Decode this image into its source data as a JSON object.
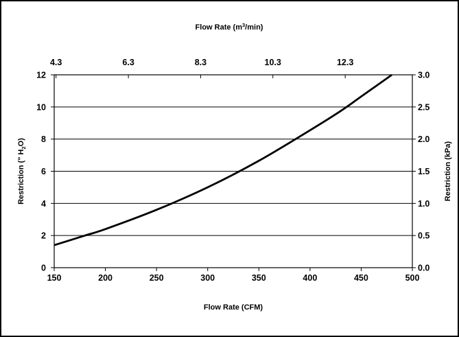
{
  "chart_data": {
    "type": "line",
    "title": "",
    "x_axis": {
      "label": "Flow Rate (CFM)",
      "range": [
        150,
        500
      ],
      "ticks": [
        150,
        200,
        250,
        300,
        350,
        400,
        450,
        500
      ]
    },
    "x2_axis": {
      "label_parts": {
        "main": "Flow Rate (m",
        "sup": "3",
        "tail": "/min)"
      },
      "label": "Flow Rate (m3/min)",
      "tick_labels": [
        "4.3",
        "6.3",
        "8.3",
        "10.3",
        "12.3"
      ],
      "tick_values_cfm": [
        151.8,
        222.5,
        293.1,
        363.7,
        434.4
      ]
    },
    "y_axis": {
      "label_parts": {
        "main": "Restriction (\" H",
        "sub": "2",
        "tail": "O)"
      },
      "label": "Restriction (\" H2O)",
      "range": [
        0,
        12
      ],
      "ticks": [
        0,
        2,
        4,
        6,
        8,
        10,
        12
      ]
    },
    "y2_axis": {
      "label": "Restriction (kPa)",
      "range": [
        0.0,
        3.0
      ],
      "tick_labels": [
        "0.0",
        "0.5",
        "1.0",
        "1.5",
        "2.0",
        "2.5",
        "3.0"
      ]
    },
    "grid": {
      "horizontal": true,
      "vertical": false
    },
    "series": [
      {
        "x": [
          150,
          180,
          200,
          250,
          300,
          350,
          400,
          430,
          450,
          480
        ],
        "y": [
          1.4,
          2.0,
          2.4,
          3.6,
          5.0,
          6.65,
          8.55,
          9.75,
          10.65,
          12.0
        ]
      }
    ],
    "colors": {
      "line": "#000000",
      "grid": "#000000",
      "background": "#ffffff"
    }
  }
}
